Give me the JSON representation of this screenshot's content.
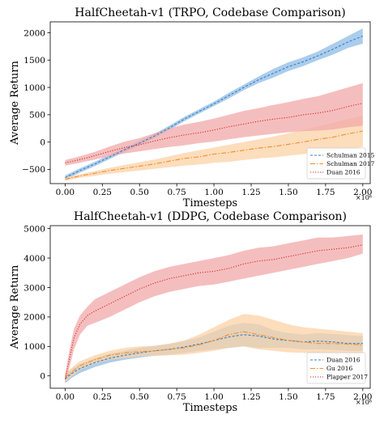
{
  "chart_data": [
    {
      "type": "line",
      "title": "HalfCheetah-v1 (TRPO, Codebase Comparison)",
      "xlabel": "Timesteps",
      "ylabel": "Average Return",
      "x_multiplier": "×10⁶",
      "xlim": [
        -0.1,
        2.05
      ],
      "ylim": [
        -760,
        2200
      ],
      "xticks": [
        0.0,
        0.25,
        0.5,
        0.75,
        1.0,
        1.25,
        1.5,
        1.75,
        2.0
      ],
      "xtick_labels": [
        "0.00",
        "0.25",
        "0.50",
        "0.75",
        "1.00",
        "1.25",
        "1.50",
        "1.75",
        "2.00"
      ],
      "yticks": [
        -500,
        0,
        500,
        1000,
        1500,
        2000
      ],
      "ytick_labels": [
        "−500",
        "0",
        "500",
        "1000",
        "1500",
        "2000"
      ],
      "legend_position": "bottom-right",
      "series": [
        {
          "name": "Schulman 2015",
          "color": "#3a7fc4",
          "fill": "#8fbce6",
          "dash": "3,2",
          "x": [
            0.0,
            0.1,
            0.2,
            0.3,
            0.4,
            0.5,
            0.6,
            0.7,
            0.8,
            0.9,
            1.0,
            1.1,
            1.2,
            1.3,
            1.4,
            1.5,
            1.6,
            1.7,
            1.8,
            1.9,
            2.0
          ],
          "mean": [
            -650,
            -520,
            -400,
            -270,
            -140,
            -20,
            110,
            260,
            420,
            560,
            700,
            850,
            1000,
            1140,
            1260,
            1380,
            1470,
            1580,
            1700,
            1830,
            1940
          ],
          "lower": [
            -690,
            -560,
            -440,
            -310,
            -180,
            -60,
            70,
            220,
            380,
            520,
            660,
            800,
            950,
            1080,
            1180,
            1300,
            1390,
            1500,
            1600,
            1720,
            1800
          ],
          "upper": [
            -610,
            -480,
            -360,
            -230,
            -100,
            20,
            150,
            300,
            460,
            600,
            740,
            900,
            1050,
            1200,
            1340,
            1460,
            1550,
            1660,
            1800,
            1940,
            2080
          ]
        },
        {
          "name": "Schulman 2017",
          "color": "#f28e2b",
          "fill": "#fbd2a6",
          "dash": "6,2,1.5,2",
          "x": [
            0.0,
            0.1,
            0.2,
            0.3,
            0.4,
            0.5,
            0.6,
            0.7,
            0.8,
            0.9,
            1.0,
            1.1,
            1.2,
            1.3,
            1.4,
            1.5,
            1.6,
            1.7,
            1.8,
            1.9,
            2.0
          ],
          "mean": [
            -680,
            -620,
            -570,
            -520,
            -480,
            -440,
            -400,
            -350,
            -300,
            -270,
            -220,
            -190,
            -150,
            -110,
            -80,
            -40,
            0,
            50,
            90,
            150,
            200
          ],
          "lower": [
            -710,
            -650,
            -620,
            -580,
            -550,
            -520,
            -490,
            -460,
            -430,
            -410,
            -380,
            -360,
            -330,
            -300,
            -280,
            -250,
            -220,
            -190,
            -160,
            -120,
            -90
          ],
          "upper": [
            -650,
            -590,
            -530,
            -470,
            -420,
            -370,
            -320,
            -260,
            -200,
            -150,
            -100,
            -50,
            0,
            50,
            100,
            160,
            220,
            290,
            350,
            420,
            480
          ]
        },
        {
          "name": "Duan 2016",
          "color": "#d62728",
          "fill": "#f1a8a8",
          "dash": "1.2,1.8",
          "x": [
            0.0,
            0.1,
            0.2,
            0.3,
            0.4,
            0.5,
            0.6,
            0.7,
            0.8,
            0.9,
            1.0,
            1.1,
            1.2,
            1.3,
            1.4,
            1.5,
            1.6,
            1.7,
            1.8,
            1.9,
            2.0
          ],
          "mean": [
            -380,
            -320,
            -250,
            -170,
            -100,
            -50,
            20,
            80,
            130,
            170,
            220,
            280,
            330,
            380,
            420,
            450,
            500,
            530,
            580,
            650,
            710
          ],
          "lower": [
            -430,
            -380,
            -320,
            -260,
            -210,
            -170,
            -130,
            -90,
            -60,
            -20,
            10,
            50,
            90,
            120,
            150,
            180,
            200,
            210,
            230,
            270,
            300
          ],
          "upper": [
            -330,
            -260,
            -180,
            -80,
            10,
            70,
            160,
            250,
            320,
            370,
            430,
            500,
            570,
            620,
            680,
            730,
            790,
            840,
            920,
            1000,
            1080
          ]
        }
      ]
    },
    {
      "type": "line",
      "title": "HalfCheetah-v1 (DDPG, Codebase Comparison)",
      "xlabel": "Timesteps",
      "ylabel": "Average Return",
      "x_multiplier": "×10⁶",
      "xlim": [
        -0.1,
        2.05
      ],
      "ylim": [
        -420,
        5100
      ],
      "xticks": [
        0.0,
        0.25,
        0.5,
        0.75,
        1.0,
        1.25,
        1.5,
        1.75,
        2.0
      ],
      "xtick_labels": [
        "0.00",
        "0.25",
        "0.50",
        "0.75",
        "1.00",
        "1.25",
        "1.50",
        "1.75",
        "2.00"
      ],
      "yticks": [
        0,
        1000,
        2000,
        3000,
        4000,
        5000
      ],
      "ytick_labels": [
        "0",
        "1000",
        "2000",
        "3000",
        "4000",
        "5000"
      ],
      "legend_position": "bottom-right",
      "series": [
        {
          "name": "Duan 2016",
          "color": "#3a7fc4",
          "fill": "#8fbce6",
          "dash": "3,2",
          "x": [
            0.0,
            0.05,
            0.1,
            0.2,
            0.3,
            0.4,
            0.5,
            0.6,
            0.7,
            0.8,
            0.9,
            1.0,
            1.1,
            1.2,
            1.3,
            1.4,
            1.5,
            1.6,
            1.7,
            1.8,
            1.9,
            2.0
          ],
          "mean": [
            -100,
            100,
            250,
            450,
            600,
            700,
            780,
            850,
            900,
            980,
            1080,
            1200,
            1320,
            1400,
            1350,
            1250,
            1200,
            1150,
            1180,
            1150,
            1100,
            1100
          ],
          "lower": [
            -250,
            -50,
            100,
            300,
            450,
            550,
            620,
            680,
            720,
            780,
            850,
            900,
            950,
            1000,
            950,
            950,
            950,
            900,
            900,
            880,
            850,
            850
          ],
          "upper": [
            50,
            250,
            400,
            600,
            750,
            850,
            950,
            1020,
            1080,
            1180,
            1300,
            1500,
            1700,
            1800,
            1750,
            1550,
            1450,
            1400,
            1450,
            1420,
            1380,
            1350
          ]
        },
        {
          "name": "Gu 2016",
          "color": "#f28e2b",
          "fill": "#fbd2a6",
          "dash": "6,2,1.5,2",
          "x": [
            0.0,
            0.05,
            0.1,
            0.2,
            0.3,
            0.4,
            0.5,
            0.6,
            0.7,
            0.8,
            0.9,
            1.0,
            1.1,
            1.2,
            1.3,
            1.4,
            1.5,
            1.6,
            1.7,
            1.8,
            1.9,
            2.0
          ],
          "mean": [
            -50,
            150,
            350,
            550,
            700,
            780,
            820,
            850,
            900,
            950,
            1050,
            1200,
            1400,
            1500,
            1400,
            1300,
            1200,
            1150,
            1100,
            1100,
            1080,
            1050
          ],
          "lower": [
            -200,
            0,
            200,
            400,
            550,
            600,
            650,
            680,
            700,
            720,
            780,
            850,
            950,
            1000,
            900,
            850,
            800,
            780,
            750,
            750,
            720,
            700
          ],
          "upper": [
            100,
            300,
            500,
            700,
            850,
            950,
            1000,
            1020,
            1100,
            1200,
            1400,
            1650,
            1900,
            2100,
            2050,
            1900,
            1750,
            1650,
            1600,
            1550,
            1500,
            1450
          ]
        },
        {
          "name": "Plapper 2017",
          "color": "#d62728",
          "fill": "#f1a8a8",
          "dash": "1.2,1.8",
          "x": [
            0.0,
            0.03,
            0.06,
            0.1,
            0.15,
            0.2,
            0.3,
            0.4,
            0.5,
            0.6,
            0.7,
            0.8,
            0.9,
            1.0,
            1.1,
            1.2,
            1.3,
            1.4,
            1.5,
            1.6,
            1.7,
            1.8,
            1.9,
            2.0
          ],
          "mean": [
            -100,
            600,
            1300,
            1750,
            2050,
            2200,
            2450,
            2700,
            2950,
            3150,
            3300,
            3400,
            3500,
            3550,
            3650,
            3800,
            3900,
            3950,
            4050,
            4150,
            4250,
            4300,
            4350,
            4450
          ],
          "lower": [
            -250,
            300,
            900,
            1400,
            1700,
            1800,
            2000,
            2250,
            2500,
            2700,
            2850,
            2950,
            3050,
            3100,
            3200,
            3300,
            3400,
            3500,
            3600,
            3700,
            3800,
            3900,
            4000,
            4150
          ],
          "upper": [
            50,
            900,
            1600,
            2050,
            2350,
            2600,
            2850,
            3100,
            3350,
            3550,
            3700,
            3800,
            3900,
            4000,
            4100,
            4250,
            4350,
            4400,
            4500,
            4600,
            4700,
            4700,
            4750,
            4800
          ]
        }
      ]
    }
  ]
}
